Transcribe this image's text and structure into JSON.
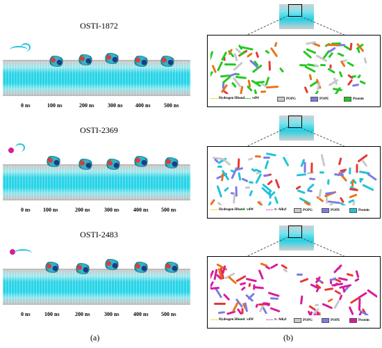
{
  "panels": {
    "a": {
      "label": "(a)",
      "simulations": [
        {
          "title": "OSTI-1872",
          "peptide_color": "#1fc3d9"
        },
        {
          "title": "OSTI-2369",
          "peptide_color": "#d81b9b"
        },
        {
          "title": "OSTI-2483",
          "peptide_color": "#d81b9b"
        }
      ],
      "time_labels": [
        "0 ns",
        "100 ns",
        "200 ns",
        "300 ns",
        "400 ns",
        "500 ns"
      ]
    },
    "b": {
      "label": "(b)",
      "details": [
        {
          "protein_color": "#22c91f",
          "legend": [
            {
              "kind": "line",
              "label": "Hydrogen Hbond",
              "color": "#f2d40a"
            },
            {
              "kind": "line",
              "label": "vdW",
              "color": "#2eb82e"
            },
            {
              "kind": "box",
              "label": "POPG",
              "color": "#c8c8c8"
            },
            {
              "kind": "box",
              "label": "POPE",
              "color": "#7b7be6"
            },
            {
              "kind": "box",
              "label": "Protein",
              "color": "#22c91f"
            }
          ]
        },
        {
          "protein_color": "#1fc3d9",
          "legend": [
            {
              "kind": "line",
              "label": "Hydrogen Hbond",
              "color": "#f2d40a"
            },
            {
              "kind": "line",
              "label": "vdW",
              "color": "#2eb82e"
            },
            {
              "kind": "line",
              "label": "π- Alkyl",
              "color": "#e05ac8"
            },
            {
              "kind": "box",
              "label": "POPG",
              "color": "#c8c8c8"
            },
            {
              "kind": "box",
              "label": "POPE",
              "color": "#7b7be6"
            },
            {
              "kind": "box",
              "label": "Protein",
              "color": "#1fc3d9"
            }
          ]
        },
        {
          "protein_color": "#d81b9b",
          "legend": [
            {
              "kind": "line",
              "label": "Hydrogen Hbond",
              "color": "#f2d40a"
            },
            {
              "kind": "line",
              "label": "vdW",
              "color": "#2eb82e"
            },
            {
              "kind": "line",
              "label": "π- Alkyl",
              "color": "#e05ac8"
            },
            {
              "kind": "box",
              "label": "POPG",
              "color": "#c8c8c8"
            },
            {
              "kind": "box",
              "label": "POPE",
              "color": "#7b7be6"
            },
            {
              "kind": "box",
              "label": "Protein",
              "color": "#d81b9b"
            }
          ]
        }
      ]
    }
  }
}
